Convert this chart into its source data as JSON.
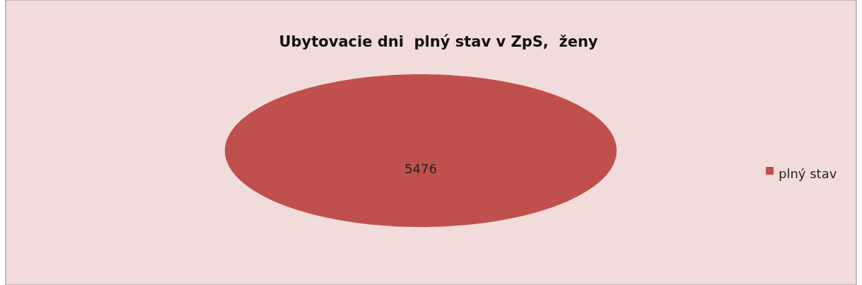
{
  "chart_data": {
    "type": "pie",
    "title": "Ubytovacie dni  plný stav v ZpS,  ženy",
    "categories": [
      "plný stav"
    ],
    "values": [
      5476
    ],
    "colors": [
      "#c0504d"
    ],
    "data_labels": true,
    "legend": "right"
  }
}
